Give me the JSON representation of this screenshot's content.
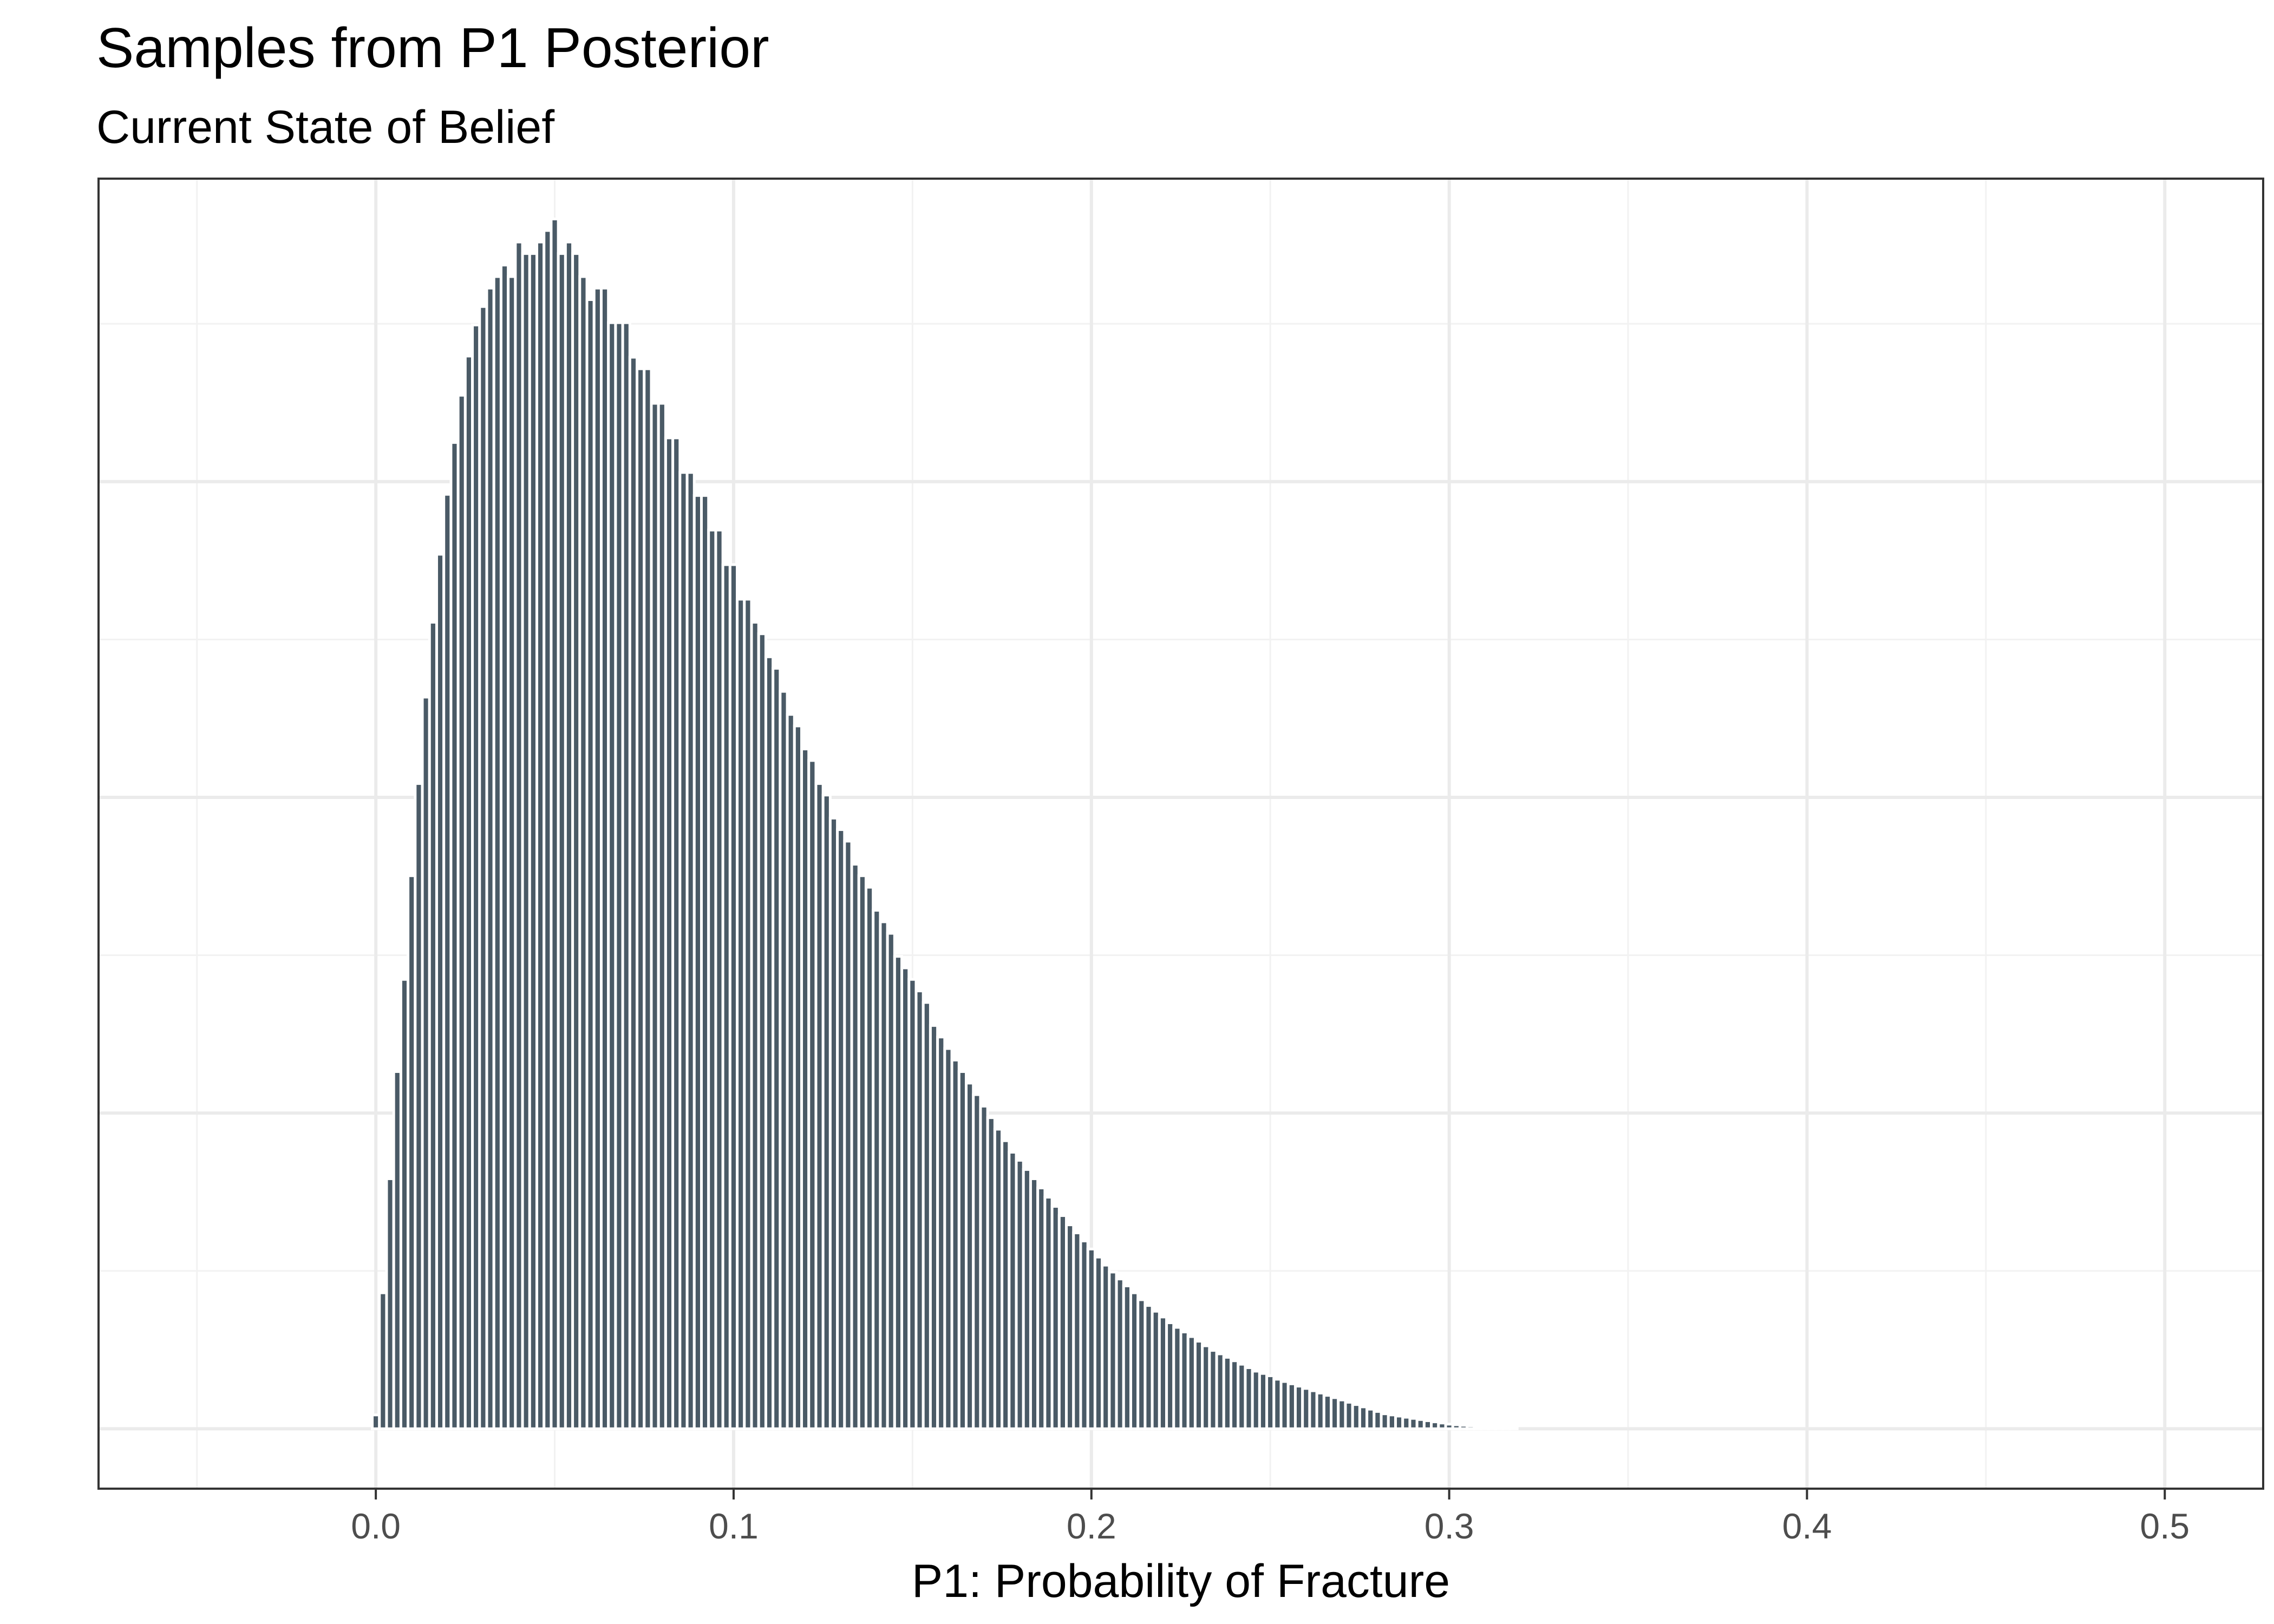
{
  "chart_data": {
    "type": "bar",
    "title": "Samples from P1 Posterior",
    "subtitle": "Current State of Belief",
    "xlabel": "P1: Probability of Fracture",
    "ylabel": "",
    "xlim": [
      -0.0775,
      0.5275
    ],
    "ylim": [
      -0.052,
      1.085
    ],
    "x_ticks": [
      0.0,
      0.1,
      0.2,
      0.3,
      0.4,
      0.5
    ],
    "x_tick_labels": [
      "0.0",
      "0.1",
      "0.2",
      "0.3",
      "0.4",
      "0.5"
    ],
    "y_ticks_shown": false,
    "grid": true,
    "bar_color": "#4a5a66",
    "bin_width": 0.002,
    "x": [
      0.0,
      0.002,
      0.004,
      0.006,
      0.008,
      0.01,
      0.012,
      0.014,
      0.016,
      0.018,
      0.02,
      0.022,
      0.024,
      0.026,
      0.028,
      0.03,
      0.032,
      0.034,
      0.036,
      0.038,
      0.04,
      0.042,
      0.044,
      0.046,
      0.048,
      0.05,
      0.052,
      0.054,
      0.056,
      0.058,
      0.06,
      0.062,
      0.064,
      0.066,
      0.068,
      0.07,
      0.072,
      0.074,
      0.076,
      0.078,
      0.08,
      0.082,
      0.084,
      0.086,
      0.088,
      0.09,
      0.092,
      0.094,
      0.096,
      0.098,
      0.1,
      0.102,
      0.104,
      0.106,
      0.108,
      0.11,
      0.112,
      0.114,
      0.116,
      0.118,
      0.12,
      0.122,
      0.124,
      0.126,
      0.128,
      0.13,
      0.132,
      0.134,
      0.136,
      0.138,
      0.14,
      0.142,
      0.144,
      0.146,
      0.148,
      0.15,
      0.152,
      0.154,
      0.156,
      0.158,
      0.16,
      0.162,
      0.164,
      0.166,
      0.168,
      0.17,
      0.172,
      0.174,
      0.176,
      0.178,
      0.18,
      0.182,
      0.184,
      0.186,
      0.188,
      0.19,
      0.192,
      0.194,
      0.196,
      0.198,
      0.2,
      0.202,
      0.204,
      0.206,
      0.208,
      0.21,
      0.212,
      0.214,
      0.216,
      0.218,
      0.22,
      0.222,
      0.224,
      0.226,
      0.228,
      0.23,
      0.232,
      0.234,
      0.236,
      0.238,
      0.24,
      0.242,
      0.244,
      0.246,
      0.248,
      0.25,
      0.252,
      0.254,
      0.256,
      0.258,
      0.26,
      0.262,
      0.264,
      0.266,
      0.268,
      0.27,
      0.272,
      0.274,
      0.276,
      0.278,
      0.28,
      0.282,
      0.284,
      0.286,
      0.288,
      0.29,
      0.292,
      0.294,
      0.296,
      0.298,
      0.3,
      0.302,
      0.304,
      0.306,
      0.308,
      0.31,
      0.312,
      0.314,
      0.316,
      0.318
    ],
    "values": [
      0.012,
      0.118,
      0.217,
      0.31,
      0.39,
      0.48,
      0.56,
      0.635,
      0.7,
      0.759,
      0.811,
      0.856,
      0.897,
      0.931,
      0.958,
      0.974,
      0.99,
      1.0,
      1.01,
      1.0,
      1.03,
      1.02,
      1.02,
      1.03,
      1.04,
      1.05,
      1.02,
      1.03,
      1.02,
      1.0,
      0.98,
      0.99,
      0.99,
      0.96,
      0.96,
      0.96,
      0.93,
      0.92,
      0.92,
      0.89,
      0.89,
      0.86,
      0.86,
      0.83,
      0.83,
      0.81,
      0.81,
      0.78,
      0.78,
      0.75,
      0.75,
      0.72,
      0.72,
      0.7,
      0.69,
      0.67,
      0.66,
      0.64,
      0.62,
      0.61,
      0.59,
      0.58,
      0.56,
      0.55,
      0.53,
      0.52,
      0.51,
      0.49,
      0.48,
      0.47,
      0.45,
      0.44,
      0.43,
      0.41,
      0.4,
      0.39,
      0.38,
      0.37,
      0.35,
      0.34,
      0.33,
      0.32,
      0.31,
      0.3,
      0.29,
      0.28,
      0.27,
      0.26,
      0.25,
      0.24,
      0.233,
      0.225,
      0.217,
      0.209,
      0.201,
      0.193,
      0.185,
      0.177,
      0.17,
      0.163,
      0.156,
      0.149,
      0.142,
      0.136,
      0.13,
      0.124,
      0.118,
      0.112,
      0.107,
      0.102,
      0.097,
      0.092,
      0.088,
      0.084,
      0.08,
      0.076,
      0.072,
      0.068,
      0.065,
      0.062,
      0.059,
      0.056,
      0.053,
      0.05,
      0.048,
      0.046,
      0.043,
      0.041,
      0.039,
      0.037,
      0.035,
      0.033,
      0.031,
      0.029,
      0.027,
      0.025,
      0.023,
      0.021,
      0.019,
      0.017,
      0.015,
      0.013,
      0.012,
      0.011,
      0.01,
      0.009,
      0.008,
      0.007,
      0.006,
      0.005,
      0.004,
      0.0035,
      0.003,
      0.0025,
      0.002,
      0.0015,
      0.001,
      0.001,
      0.0005,
      0.0005
    ]
  }
}
